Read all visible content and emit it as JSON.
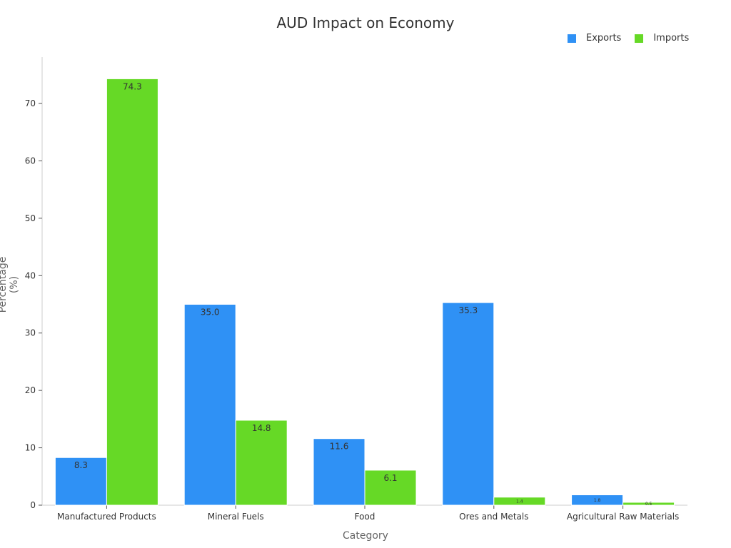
{
  "chart_data": {
    "type": "bar",
    "title": "AUD Impact on Economy",
    "xlabel": "Category",
    "ylabel": "Percentage (%)",
    "categories": [
      "Manufactured Products",
      "Mineral Fuels",
      "Food",
      "Ores and Metals",
      "Agricultural Raw Materials"
    ],
    "series": [
      {
        "name": "Exports",
        "color": "#2f91f5",
        "values": [
          8.3,
          35.0,
          11.6,
          35.3,
          1.8
        ]
      },
      {
        "name": "Imports",
        "color": "#66d926",
        "values": [
          74.3,
          14.8,
          6.1,
          1.4,
          0.5
        ]
      }
    ],
    "ylim": [
      0,
      78
    ],
    "yticks": [
      0,
      10,
      20,
      30,
      40,
      50,
      60,
      70
    ],
    "grid": false,
    "legend_position": "top-right"
  }
}
